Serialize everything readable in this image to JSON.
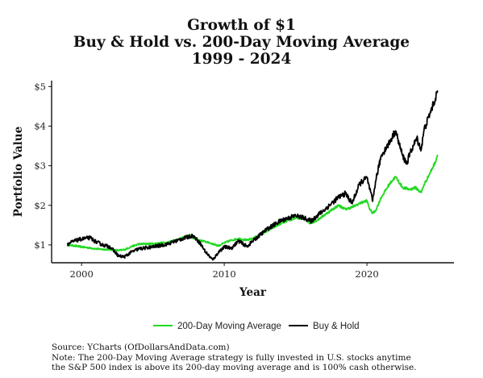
{
  "chart_data": {
    "type": "line",
    "title_lines": [
      "Growth of $1",
      "Buy & Hold vs. 200-Day Moving Average",
      "1999 - 2024"
    ],
    "xlabel": "Year",
    "ylabel": "Portfolio Value",
    "xlim": [
      1997.9,
      2026.1
    ],
    "ylim": [
      0.55,
      5.15
    ],
    "x_ticks": [
      2000,
      2010,
      2020
    ],
    "y_ticks": [
      {
        "value": 1,
        "label": "$1"
      },
      {
        "value": 2,
        "label": "$2"
      },
      {
        "value": 3,
        "label": "$3"
      },
      {
        "value": 4,
        "label": "$4"
      },
      {
        "value": 5,
        "label": "$5"
      }
    ],
    "grid": false,
    "legend_position": "bottom",
    "series": [
      {
        "name": "200-Day Moving Average",
        "color": "#22d922",
        "x": [
          1999.0,
          1999.5,
          2000.0,
          2000.7,
          2001.0,
          2002.0,
          2002.6,
          2003.0,
          2003.5,
          2004.0,
          2005.0,
          2006.0,
          2007.0,
          2007.5,
          2008.0,
          2008.5,
          2009.0,
          2009.6,
          2010.0,
          2010.5,
          2011.0,
          2011.6,
          2012.0,
          2013.0,
          2014.0,
          2015.0,
          2015.6,
          2016.0,
          2016.5,
          2017.0,
          2018.0,
          2018.5,
          2019.0,
          2019.5,
          2020.0,
          2020.2,
          2020.4,
          2020.6,
          2021.0,
          2021.6,
          2022.0,
          2022.5,
          2023.0,
          2023.4,
          2023.8,
          2024.0,
          2024.4,
          2024.8,
          2024.95
        ],
        "values": [
          1.0,
          0.98,
          0.95,
          0.92,
          0.9,
          0.88,
          0.86,
          0.88,
          0.96,
          1.02,
          1.03,
          1.06,
          1.17,
          1.24,
          1.14,
          1.1,
          1.05,
          0.98,
          1.05,
          1.12,
          1.16,
          1.12,
          1.16,
          1.35,
          1.55,
          1.68,
          1.68,
          1.55,
          1.62,
          1.75,
          2.0,
          1.9,
          1.96,
          2.05,
          2.12,
          1.9,
          1.8,
          1.86,
          2.2,
          2.55,
          2.72,
          2.45,
          2.4,
          2.45,
          2.32,
          2.52,
          2.8,
          3.1,
          3.28
        ]
      },
      {
        "name": "Buy & Hold",
        "color": "#000000",
        "x": [
          1999.0,
          1999.5,
          2000.0,
          2000.6,
          2001.0,
          2001.5,
          2002.0,
          2002.6,
          2003.0,
          2003.5,
          2004.0,
          2005.0,
          2006.0,
          2007.0,
          2007.8,
          2008.3,
          2008.7,
          2009.0,
          2009.2,
          2009.6,
          2010.0,
          2010.5,
          2011.0,
          2011.6,
          2012.0,
          2013.0,
          2014.0,
          2015.0,
          2015.6,
          2016.1,
          2016.5,
          2017.0,
          2018.0,
          2018.5,
          2018.95,
          2019.5,
          2020.0,
          2020.2,
          2020.4,
          2020.6,
          2021.0,
          2021.6,
          2022.0,
          2022.5,
          2022.8,
          2023.0,
          2023.5,
          2023.8,
          2024.0,
          2024.4,
          2024.8,
          2024.95
        ],
        "values": [
          1.02,
          1.1,
          1.15,
          1.18,
          1.08,
          1.0,
          0.95,
          0.72,
          0.7,
          0.82,
          0.9,
          0.95,
          1.02,
          1.15,
          1.24,
          1.05,
          0.82,
          0.7,
          0.62,
          0.82,
          0.95,
          0.92,
          1.1,
          0.96,
          1.1,
          1.4,
          1.62,
          1.74,
          1.68,
          1.6,
          1.74,
          1.88,
          2.2,
          2.3,
          2.05,
          2.55,
          2.7,
          2.4,
          2.1,
          2.6,
          3.25,
          3.6,
          3.88,
          3.25,
          3.05,
          3.3,
          3.7,
          3.4,
          3.9,
          4.3,
          4.7,
          4.9
        ]
      }
    ]
  },
  "footer": {
    "source": "Source: YCharts (OfDollarsAndData.com)",
    "note_line1": "Note: The 200-Day Moving Average strategy is fully invested in U.S. stocks anytime",
    "note_line2": "the S&P 500 index is above its 200-day moving average and is 100% cash otherwise."
  }
}
